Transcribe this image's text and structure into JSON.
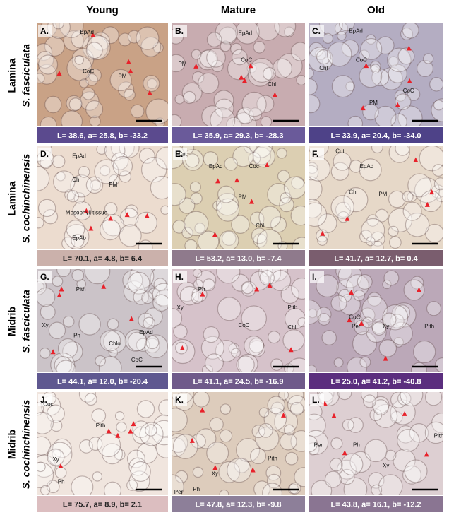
{
  "columns": [
    "Young",
    "Mature",
    "Old"
  ],
  "rows": [
    {
      "tissue": "Lamina",
      "species": "S. fasciculata",
      "panels": [
        {
          "letter": "A.",
          "labels": [
            "EpAd",
            "CoC",
            "PM"
          ],
          "color_values": "L= 38.6, a= 25.8, b= -33.2",
          "image_color": "#c9a286",
          "swatch": "#5b4a8e",
          "text_color": "#ffffff"
        },
        {
          "letter": "B.",
          "labels": [
            "EpAd",
            "PM",
            "CoC",
            "Chl"
          ],
          "color_values": "L= 35.9, a= 29.3, b= -28.3",
          "image_color": "#c8acb0",
          "swatch": "#6a5a9a",
          "text_color": "#ffffff"
        },
        {
          "letter": "C.",
          "labels": [
            "EpAd",
            "Chl",
            "CoC",
            "CoC",
            "PM"
          ],
          "color_values": "L= 33.9, a= 20.4, b= -34.0",
          "image_color": "#b4adc2",
          "swatch": "#4e4288",
          "text_color": "#ffffff"
        }
      ]
    },
    {
      "tissue": "Lamina",
      "species": "S. cochinchinensis",
      "panels": [
        {
          "letter": "D.",
          "labels": [
            "EpAd",
            "Chl",
            "PM",
            "Mesophyll tissue",
            "EpAb"
          ],
          "color_values": "L= 70.1, a= 4.8, b= 6.4",
          "image_color": "#ecdccf",
          "swatch": "#cbb1ab",
          "text_color": "#222222"
        },
        {
          "letter": "E.",
          "labels": [
            "Cut",
            "EpAd",
            "Coc",
            "PM",
            "Chl"
          ],
          "color_values": "L= 53.2, a= 13.0, b= -7.4",
          "image_color": "#dccfb2",
          "swatch": "#8f7a8c",
          "text_color": "#ffffff"
        },
        {
          "letter": "F.",
          "labels": [
            "Cut",
            "EpAd",
            "Chl",
            "PM"
          ],
          "color_values": "L= 41.7, a= 12.7, b= 0.4",
          "image_color": "#e6d8c8",
          "swatch": "#7a5d6e",
          "text_color": "#ffffff"
        }
      ]
    },
    {
      "tissue": "Midrib",
      "species": "S. fasciculata",
      "panels": [
        {
          "letter": "G.",
          "labels": [
            "Pith",
            "Xy",
            "Ph",
            "Chlo",
            "EpAd",
            "CoC"
          ],
          "color_values": "L= 44.1, a= 12.0, b= -20.4",
          "image_color": "#cbc3c8",
          "swatch": "#5f5890",
          "text_color": "#ffffff"
        },
        {
          "letter": "H.",
          "labels": [
            "Ph",
            "Xy",
            "CoC",
            "Pith",
            "Chl"
          ],
          "color_values": "L= 41.1, a= 24.5, b= -16.9",
          "image_color": "#d6c2ca",
          "swatch": "#6f5a8a",
          "text_color": "#ffffff"
        },
        {
          "letter": "I.",
          "labels": [
            "CoC",
            "Per",
            "Xy",
            "Pith"
          ],
          "color_values": "L= 25.0, a= 41.2, b= -40.8",
          "image_color": "#bba8b8",
          "swatch": "#5b2e7e",
          "text_color": "#ffffff"
        }
      ]
    },
    {
      "tissue": "Midrib",
      "species": "S. cochinchinensis",
      "panels": [
        {
          "letter": "J.",
          "labels": [
            "Coc",
            "Pith",
            "Xy",
            "Ph"
          ],
          "color_values": "L= 75.7, a= 8.9, b= 2.1",
          "image_color": "#f0e5de",
          "swatch": "#dcbec0",
          "text_color": "#222222"
        },
        {
          "letter": "K.",
          "labels": [
            "Pith",
            "Xy",
            "Ph",
            "Per"
          ],
          "color_values": "L= 47.8, a= 12.3, b= -9.8",
          "image_color": "#ddccbc",
          "swatch": "#8d7f99",
          "text_color": "#ffffff"
        },
        {
          "letter": "L.",
          "labels": [
            "Per",
            "Ph",
            "Xy",
            "Pith"
          ],
          "color_values": "L= 43.8, a= 16.1, b= -12.2",
          "image_color": "#ddcfd2",
          "swatch": "#8a7592",
          "text_color": "#ffffff"
        }
      ]
    }
  ]
}
